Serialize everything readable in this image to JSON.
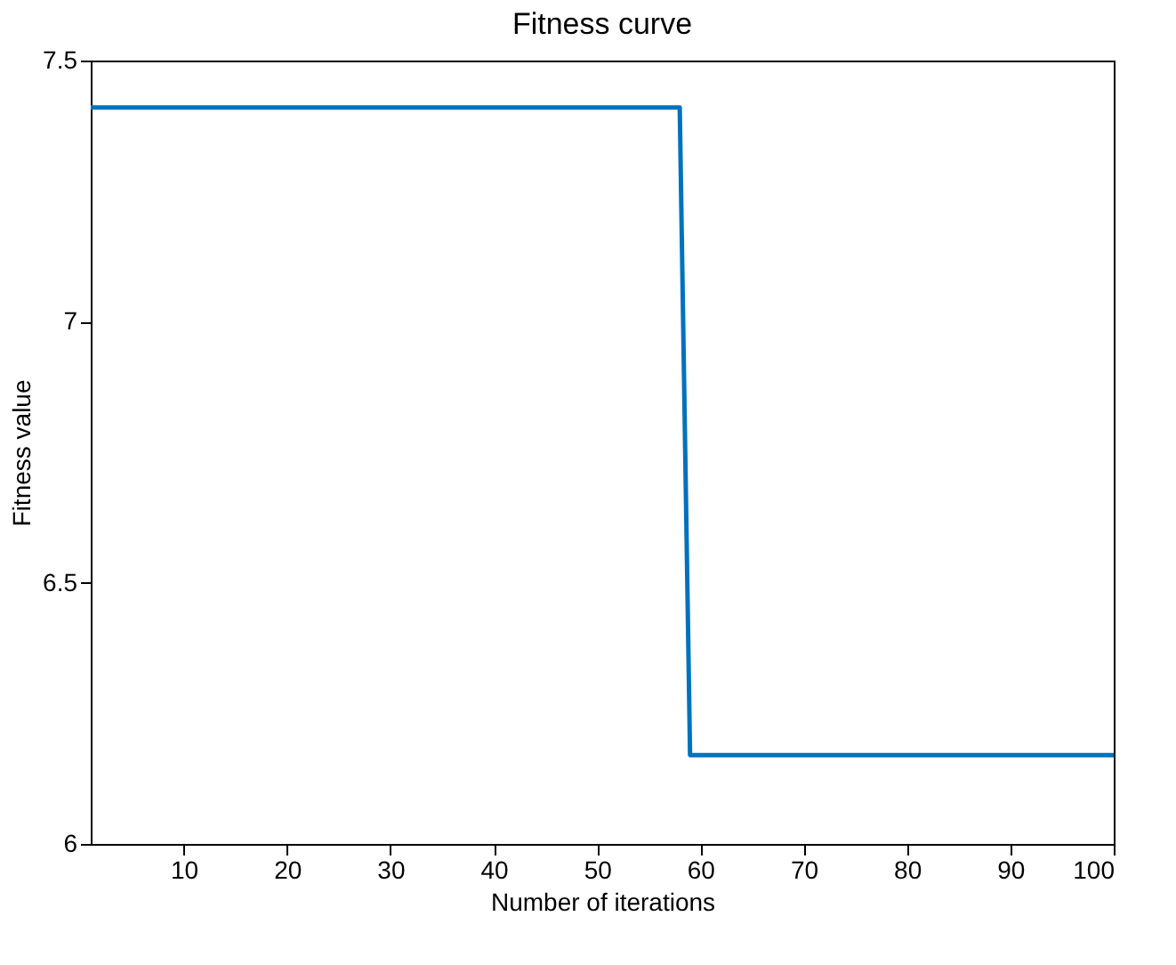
{
  "chart_data": {
    "type": "line",
    "title": "Fitness curve",
    "xlabel": "Number of iterations",
    "ylabel": "Fitness value",
    "x": [
      1,
      58,
      59,
      100
    ],
    "series": [
      {
        "color": "#0072bd",
        "values": [
          7.41,
          7.41,
          6.17,
          6.17
        ]
      }
    ],
    "xlim": [
      1,
      100
    ],
    "xticks": [
      10,
      20,
      30,
      40,
      50,
      60,
      70,
      80,
      90,
      100
    ],
    "ylim": [
      6,
      7.5
    ],
    "yticks": [
      6,
      6.5,
      7,
      7.5
    ],
    "grid": false,
    "legend": false,
    "marker": "none",
    "line_style": "solid"
  }
}
